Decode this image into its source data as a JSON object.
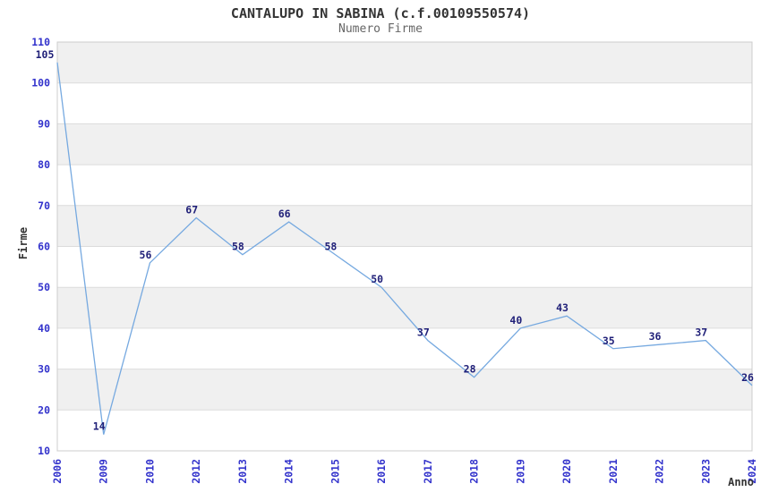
{
  "chart_data": {
    "type": "line",
    "title": "CANTALUPO IN SABINA (c.f.00109550574)",
    "subtitle": "Numero Firme",
    "xlabel": "Anno",
    "ylabel": "Firme",
    "categories": [
      "2006",
      "2009",
      "2010",
      "2012",
      "2013",
      "2014",
      "2015",
      "2016",
      "2017",
      "2018",
      "2019",
      "2020",
      "2021",
      "2022",
      "2023",
      "2024"
    ],
    "values": [
      105,
      14,
      56,
      67,
      58,
      66,
      58,
      50,
      37,
      28,
      40,
      43,
      35,
      36,
      37,
      26
    ],
    "ylim": [
      10,
      110
    ],
    "yticks": [
      10,
      20,
      30,
      40,
      50,
      60,
      70,
      80,
      90,
      100,
      110
    ],
    "grid": true,
    "legend": "none",
    "band_pattern": "alternating gray bands between gridlines, gray band at top (100-110)",
    "colors": {
      "line": "#76a9e0",
      "data_label": "#1f1f78",
      "tick_label": "#3333cc",
      "band_gray": "#f0f0f0",
      "band_white": "#ffffff",
      "gridline": "#dcdcdc",
      "plot_border": "#cccccc",
      "title": "#333333",
      "subtitle": "#666666",
      "axis_title": "#333333"
    }
  }
}
